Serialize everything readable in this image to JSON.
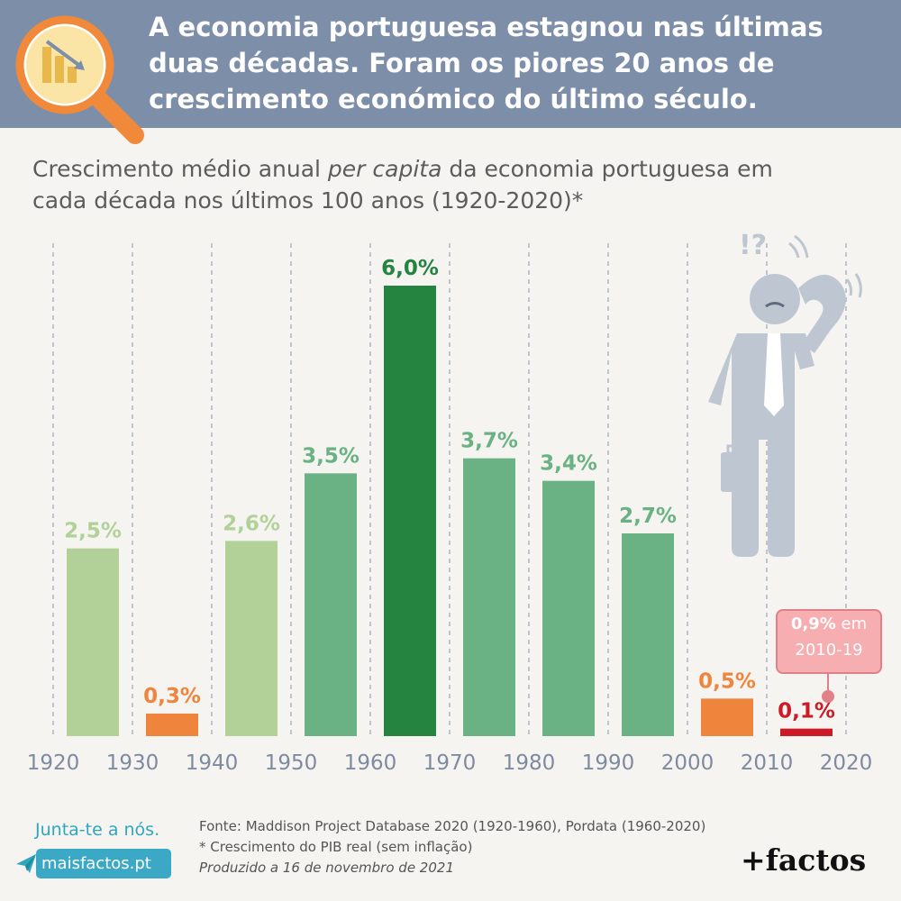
{
  "header": {
    "headline_lines": [
      "A economia portuguesa estagnou nas últimas",
      "duas décadas. Foram os piores 20 anos de",
      "crescimento económico do último século."
    ],
    "header_color": "#7d8ea8",
    "logo_icon": "magnifier-chart-icon"
  },
  "subtitle": {
    "part1": "Crescimento médio anual ",
    "italic": "per capita",
    "part2": " da economia portuguesa em",
    "line2": "cada década nos últimos 100 anos (1920-2020)*"
  },
  "chart_data": {
    "type": "bar",
    "x_ticks": [
      "1920",
      "1930",
      "1940",
      "1950",
      "1960",
      "1970",
      "1980",
      "1990",
      "2000",
      "2010",
      "2020"
    ],
    "bars": [
      {
        "decade_start": 1920,
        "value": 2.5,
        "label": "2,5%",
        "color": "#b1d198"
      },
      {
        "decade_start": 1930,
        "value": 0.3,
        "label": "0,3%",
        "color": "#ef853d"
      },
      {
        "decade_start": 1940,
        "value": 2.6,
        "label": "2,6%",
        "color": "#b1d198"
      },
      {
        "decade_start": 1950,
        "value": 3.5,
        "label": "3,5%",
        "color": "#6ab283"
      },
      {
        "decade_start": 1960,
        "value": 6.0,
        "label": "6,0%",
        "color": "#248440"
      },
      {
        "decade_start": 1970,
        "value": 3.7,
        "label": "3,7%",
        "color": "#6ab283"
      },
      {
        "decade_start": 1980,
        "value": 3.4,
        "label": "3,4%",
        "color": "#6ab283"
      },
      {
        "decade_start": 1990,
        "value": 2.7,
        "label": "2,7%",
        "color": "#6ab283"
      },
      {
        "decade_start": 2000,
        "value": 0.5,
        "label": "0,5%",
        "color": "#ef853d"
      },
      {
        "decade_start": 2010,
        "value": 0.1,
        "label": "0,1%",
        "color": "#cc1a26"
      }
    ],
    "ylim": [
      0,
      6.0
    ],
    "grid": "vertical dashed lines at decade boundaries"
  },
  "callout": {
    "bold": "0,9%",
    "rest": " em",
    "line2": "2010-19",
    "color": "#f6aeb1"
  },
  "illustration": "confused-businessman-icon",
  "footer": {
    "join_text": "Junta-te a nós.",
    "site": "maisfactos.pt",
    "source_lines": [
      "Fonte: Maddison Project Database 2020 (1920-1960), Pordata (1960-2020)",
      "* Crescimento do PIB real (sem inflação)",
      "Produzido a 16 de novembro de 2021"
    ],
    "brand": "+factos"
  }
}
